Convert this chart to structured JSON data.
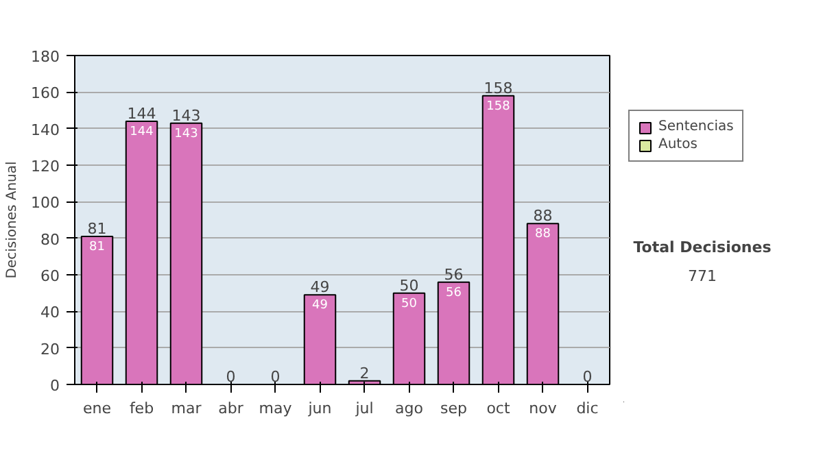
{
  "chart_data": {
    "type": "bar",
    "stacked": true,
    "ylabel": "Decisiones Anual",
    "categories": [
      "ene",
      "feb",
      "mar",
      "abr",
      "may",
      "jun",
      "jul",
      "ago",
      "sep",
      "oct",
      "nov",
      "dic"
    ],
    "series": [
      {
        "name": "Sentencias",
        "color": "#d975bb",
        "values": [
          81,
          144,
          143,
          0,
          0,
          49,
          2,
          50,
          56,
          158,
          88,
          0
        ],
        "value_labels": [
          "81",
          "144",
          "143",
          null,
          null,
          "49",
          null,
          "50",
          "56",
          "158",
          "88",
          null
        ]
      },
      {
        "name": "Autos",
        "color": "#d9eaa0",
        "values": [
          0,
          0,
          0,
          0,
          0,
          0,
          0,
          0,
          0,
          0,
          0,
          0
        ]
      }
    ],
    "totals": [
      "81",
      "144",
      "143",
      "0",
      "0",
      "49",
      "2",
      "50",
      "56",
      "158",
      "88",
      "0"
    ],
    "ylim": [
      0,
      180
    ],
    "yticks": [
      0,
      20,
      40,
      60,
      80,
      100,
      120,
      140,
      160,
      180
    ],
    "grid": "y",
    "legend": "right",
    "annotations": [
      "Total Decisiones",
      "771"
    ]
  }
}
